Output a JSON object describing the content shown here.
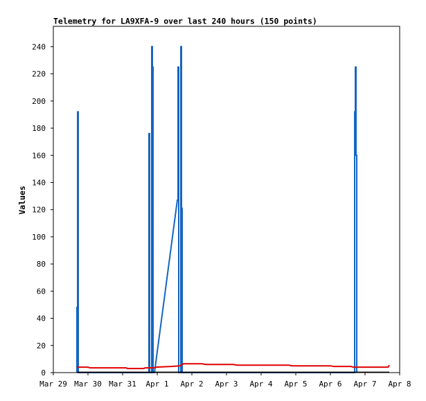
{
  "chart_data": {
    "type": "line",
    "title": "Telemetry for LA9XFA-9 over last 240 hours (150 points)",
    "xlabel": "",
    "ylabel": "Values",
    "xlim": [
      "Mar 29",
      "Apr 8"
    ],
    "ylim": [
      0,
      255
    ],
    "x_ticks": [
      "Mar 29",
      "Mar 30",
      "Mar 31",
      "Apr 1",
      "Apr 2",
      "Apr 3",
      "Apr 4",
      "Apr 5",
      "Apr 6",
      "Apr 7",
      "Apr 8"
    ],
    "y_ticks": [
      0,
      20,
      40,
      60,
      80,
      100,
      120,
      140,
      160,
      180,
      200,
      220,
      240
    ],
    "grid": false,
    "legend": "none",
    "colors": {
      "series_blue": "#1565c0",
      "series_red": "#e00000",
      "series_black": "#000000",
      "axis": "#000000"
    },
    "series": [
      {
        "color": "#1565c0",
        "points": [
          [
            0.68,
            0
          ],
          [
            0.68,
            48
          ],
          [
            0.7,
            48
          ],
          [
            0.7,
            192
          ],
          [
            0.72,
            192
          ],
          [
            0.72,
            0
          ],
          [
            2.76,
            0
          ],
          [
            2.76,
            176
          ],
          [
            2.78,
            176
          ],
          [
            2.78,
            0
          ],
          [
            2.84,
            0
          ],
          [
            2.84,
            240
          ],
          [
            2.86,
            240
          ],
          [
            2.86,
            225
          ],
          [
            2.88,
            225
          ],
          [
            2.88,
            0
          ],
          [
            2.92,
            0
          ],
          [
            3.58,
            127
          ],
          [
            3.6,
            127
          ],
          [
            3.6,
            225
          ],
          [
            3.62,
            225
          ],
          [
            3.62,
            0
          ],
          [
            3.68,
            0
          ],
          [
            3.68,
            240
          ],
          [
            3.7,
            240
          ],
          [
            3.7,
            121
          ],
          [
            3.72,
            121
          ],
          [
            3.72,
            0
          ],
          [
            8.7,
            0
          ],
          [
            8.7,
            192
          ],
          [
            8.72,
            192
          ],
          [
            8.72,
            225
          ],
          [
            8.74,
            225
          ],
          [
            8.74,
            160
          ],
          [
            8.76,
            160
          ],
          [
            8.76,
            0
          ]
        ]
      },
      {
        "color": "#e00000",
        "points": [
          [
            0.68,
            4
          ],
          [
            1.0,
            4
          ],
          [
            1.06,
            3.5
          ],
          [
            2.1,
            3.5
          ],
          [
            2.14,
            3
          ],
          [
            2.6,
            3
          ],
          [
            2.66,
            3.5
          ],
          [
            2.92,
            3.5
          ],
          [
            2.96,
            4
          ],
          [
            3.4,
            4.5
          ],
          [
            3.66,
            5
          ],
          [
            3.76,
            6.5
          ],
          [
            4.3,
            6.5
          ],
          [
            4.4,
            6
          ],
          [
            5.2,
            6
          ],
          [
            5.3,
            5.5
          ],
          [
            6.8,
            5.5
          ],
          [
            6.9,
            5
          ],
          [
            8.0,
            5
          ],
          [
            8.1,
            4.5
          ],
          [
            8.6,
            4.5
          ],
          [
            8.66,
            4
          ],
          [
            9.66,
            4
          ],
          [
            9.68,
            4.5
          ],
          [
            9.7,
            5.5
          ]
        ]
      },
      {
        "color": "#000000",
        "points": [
          [
            0.68,
            0.3
          ],
          [
            9.7,
            0.3
          ]
        ]
      }
    ]
  }
}
